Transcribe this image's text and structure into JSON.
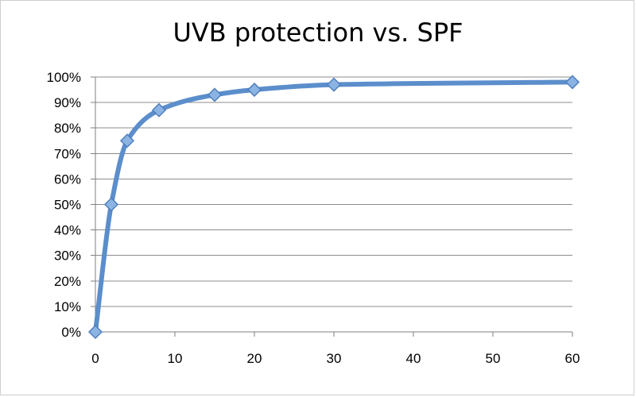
{
  "chart_data": {
    "type": "line",
    "title": "UVB protection vs. SPF",
    "xlabel": "",
    "ylabel": "",
    "x": [
      0,
      2,
      4,
      8,
      15,
      20,
      30,
      60
    ],
    "series": [
      {
        "values": [
          0,
          50,
          75,
          87,
          93,
          95,
          97,
          98
        ]
      }
    ],
    "xlim": [
      0,
      60
    ],
    "ylim": [
      0,
      100
    ],
    "x_ticks": [
      "0",
      "10",
      "20",
      "30",
      "40",
      "50",
      "60"
    ],
    "y_ticks": [
      "0%",
      "10%",
      "20%",
      "30%",
      "40%",
      "50%",
      "60%",
      "70%",
      "80%",
      "90%",
      "100%"
    ],
    "grid": "horizontal",
    "legend": "none",
    "marker": "diamond",
    "smooth": true,
    "colors": {
      "line": "#5b8ecb",
      "marker_fill": "#8cb4e3",
      "marker_stroke": "#4f7fbf",
      "grid": "#8c8c8c",
      "axis": "#7f7f7f"
    }
  }
}
